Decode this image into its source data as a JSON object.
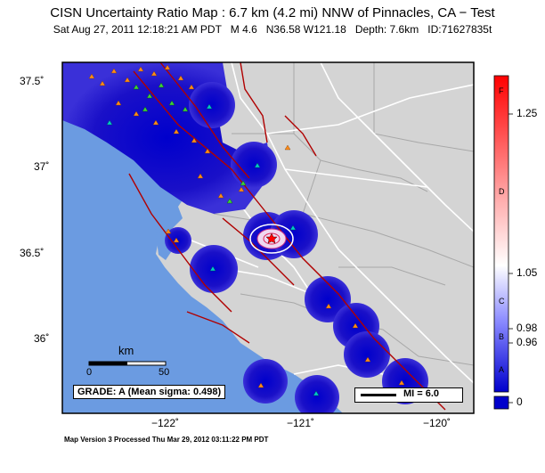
{
  "title": "CISN Uncertainty Ratio Map : 6.7 km (4.2 mi) NNW of Pinnacles, CA − Test",
  "subtitle": {
    "datetime": "Sat Aug 27, 2011 12:18:21 AM PDT",
    "magnitude": "M 4.6",
    "location": "N36.58 W121.18",
    "depth": "Depth: 7.6km",
    "id": "ID:71627835t"
  },
  "footer": "Map Version 3 Processed Thu Mar 29, 2012 03:11:22 PM PDT",
  "axes": {
    "lat_labels": [
      "37.5˚",
      "37˚",
      "36.5˚",
      "36˚"
    ],
    "lon_labels": [
      "−122˚",
      "−121˚",
      "−120˚"
    ]
  },
  "scalebar": {
    "title": "km",
    "start": "0",
    "end": "50"
  },
  "grade_box": "GRADE: A (Mean sigma: 0.498)",
  "mi_box": "MI = 6.0",
  "colorbar": {
    "tick_labels": [
      "1.25",
      "1.05",
      "0.98",
      "0.96",
      "0"
    ],
    "grade_letters": [
      "F",
      "D",
      "C",
      "B",
      "A"
    ],
    "colors": {
      "top": "#ff0000",
      "upper_mid": "#ff9a9a",
      "mid": "#ffffff",
      "lower": "#8080ff",
      "bottom": "#0000cc"
    }
  },
  "colors": {
    "ocean": "#6b9be1",
    "land": "#d4d4d4",
    "uncertainty": "#1a10c8",
    "faults": "#b00000",
    "roads": "#ffffff",
    "stations_orange": "#ff8c1a",
    "stations_green": "#3ccf3c",
    "stations_cyan": "#00c8c8"
  },
  "icons": [
    "epicenter-star-icon"
  ]
}
